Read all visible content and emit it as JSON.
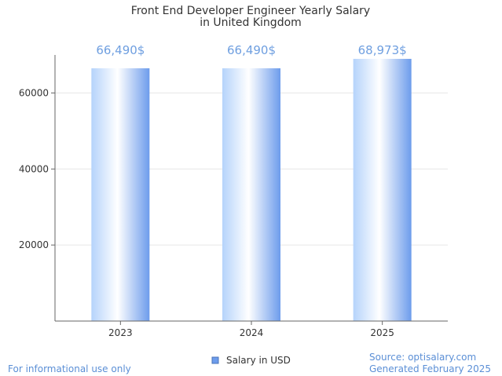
{
  "chart_data": {
    "type": "bar",
    "title_line1": "Front End Developer Engineer Yearly Salary",
    "title_line2": "in United Kingdom",
    "categories": [
      "2023",
      "2024",
      "2025"
    ],
    "series": [
      {
        "name": "Salary in USD",
        "values": [
          66490,
          66490,
          68973
        ]
      }
    ],
    "data_labels": [
      "66,490$",
      "66,490$",
      "68,973$"
    ],
    "y_ticks": [
      20000,
      40000,
      60000
    ],
    "ylim": [
      0,
      70000
    ],
    "grid": true,
    "legend_position": "bottom"
  },
  "footer": {
    "disclaimer": "For informational use only",
    "source": "Source: optisalary.com",
    "generated": "Generated February 2025"
  },
  "colors": {
    "bar_light": "#ffffff",
    "bar_mid": "#b5d3fb",
    "bar_dark": "#6d9cec",
    "label": "#6f9fe0",
    "grid": "#e6e6e6",
    "axis": "#666666"
  }
}
